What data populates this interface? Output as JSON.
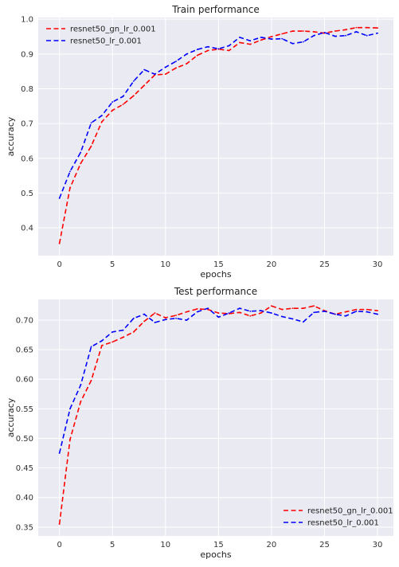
{
  "chart_data": [
    {
      "type": "line",
      "title": "Train performance",
      "xlabel": "epochs",
      "ylabel": "accuracy",
      "xlim": [
        -2,
        31.5
      ],
      "ylim": [
        0.32,
        1.005
      ],
      "xticks": [
        0,
        5,
        10,
        15,
        20,
        25,
        30
      ],
      "yticks": [
        0.4,
        0.5,
        0.6,
        0.7,
        0.8,
        0.9,
        1.0
      ],
      "ytick_labels": [
        "0.4",
        "0.5",
        "0.6",
        "0.7",
        "0.8",
        "0.9",
        "1.0"
      ],
      "grid": true,
      "legend_position": "top-left",
      "x": [
        0,
        1,
        2,
        3,
        4,
        5,
        6,
        7,
        8,
        9,
        10,
        11,
        12,
        13,
        14,
        15,
        16,
        17,
        18,
        19,
        20,
        21,
        22,
        23,
        24,
        25,
        26,
        27,
        28,
        29,
        30
      ],
      "series": [
        {
          "name": "resnet50_gn_lr_0.001",
          "color": "#ff0000",
          "values": [
            0.355,
            0.515,
            0.585,
            0.635,
            0.705,
            0.738,
            0.755,
            0.78,
            0.81,
            0.84,
            0.842,
            0.86,
            0.872,
            0.896,
            0.91,
            0.914,
            0.91,
            0.933,
            0.928,
            0.94,
            0.95,
            0.958,
            0.966,
            0.966,
            0.964,
            0.96,
            0.966,
            0.97,
            0.976,
            0.976,
            0.975
          ]
        },
        {
          "name": "resnet50_lr_0.001",
          "color": "#0000ff",
          "values": [
            0.485,
            0.562,
            0.617,
            0.702,
            0.723,
            0.762,
            0.778,
            0.822,
            0.855,
            0.842,
            0.862,
            0.879,
            0.9,
            0.913,
            0.921,
            0.915,
            0.924,
            0.948,
            0.938,
            0.948,
            0.943,
            0.944,
            0.93,
            0.935,
            0.953,
            0.962,
            0.951,
            0.953,
            0.964,
            0.953,
            0.96
          ]
        }
      ]
    },
    {
      "type": "line",
      "title": "Test performance",
      "xlabel": "epochs",
      "ylabel": "accuracy",
      "xlim": [
        -2,
        31.5
      ],
      "ylim": [
        0.335,
        0.735
      ],
      "xticks": [
        0,
        5,
        10,
        15,
        20,
        25,
        30
      ],
      "yticks": [
        0.35,
        0.4,
        0.45,
        0.5,
        0.55,
        0.6,
        0.65,
        0.7
      ],
      "ytick_labels": [
        "0.35",
        "0.40",
        "0.45",
        "0.50",
        "0.55",
        "0.60",
        "0.65",
        "0.70"
      ],
      "grid": true,
      "legend_position": "bottom-right",
      "x": [
        0,
        1,
        2,
        3,
        4,
        5,
        6,
        7,
        8,
        9,
        10,
        11,
        12,
        13,
        14,
        15,
        16,
        17,
        18,
        19,
        20,
        21,
        22,
        23,
        24,
        25,
        26,
        27,
        28,
        29,
        30
      ],
      "series": [
        {
          "name": "resnet50_gn_lr_0.001",
          "color": "#ff0000",
          "values": [
            0.355,
            0.498,
            0.562,
            0.598,
            0.657,
            0.663,
            0.671,
            0.68,
            0.698,
            0.712,
            0.704,
            0.708,
            0.714,
            0.719,
            0.718,
            0.712,
            0.711,
            0.713,
            0.707,
            0.712,
            0.724,
            0.718,
            0.72,
            0.72,
            0.724,
            0.716,
            0.71,
            0.714,
            0.718,
            0.718,
            0.716
          ]
        },
        {
          "name": "resnet50_lr_0.001",
          "color": "#0000ff",
          "values": [
            0.475,
            0.55,
            0.59,
            0.655,
            0.665,
            0.68,
            0.683,
            0.703,
            0.71,
            0.696,
            0.701,
            0.703,
            0.7,
            0.714,
            0.72,
            0.705,
            0.712,
            0.72,
            0.715,
            0.716,
            0.712,
            0.706,
            0.702,
            0.697,
            0.713,
            0.715,
            0.71,
            0.707,
            0.715,
            0.714,
            0.71
          ]
        }
      ]
    }
  ]
}
